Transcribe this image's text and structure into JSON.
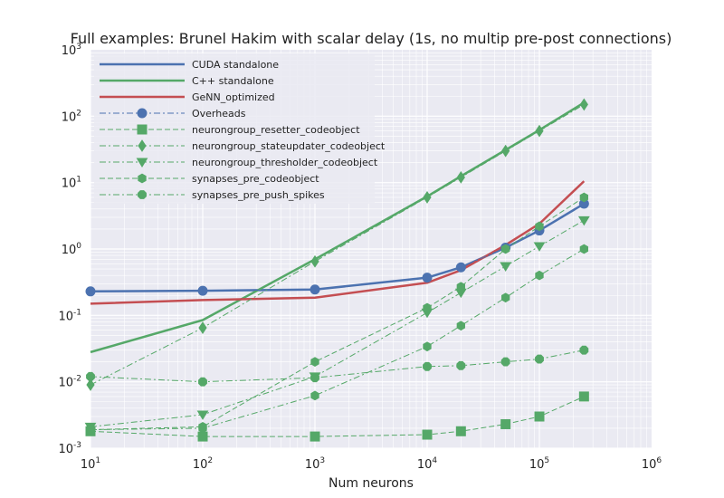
{
  "chart_data": {
    "type": "line",
    "title": "Full examples: Brunel Hakim with scalar delay (1s, no multip pre-post connections)",
    "xlabel": "Num neurons",
    "ylabel": "",
    "xscale": "log",
    "yscale": "log",
    "xlim": [
      10,
      1000000
    ],
    "ylim": [
      0.001,
      1000
    ],
    "grid": true,
    "legend_position": "top-left",
    "x_ticks": [
      {
        "base": "10",
        "exp": "1"
      },
      {
        "base": "10",
        "exp": "2"
      },
      {
        "base": "10",
        "exp": "3"
      },
      {
        "base": "10",
        "exp": "4"
      },
      {
        "base": "10",
        "exp": "5"
      },
      {
        "base": "10",
        "exp": "6"
      }
    ],
    "y_ticks": [
      {
        "base": "10",
        "exp": "-3"
      },
      {
        "base": "10",
        "exp": "-2"
      },
      {
        "base": "10",
        "exp": "-1"
      },
      {
        "base": "10",
        "exp": "0"
      },
      {
        "base": "10",
        "exp": "1"
      },
      {
        "base": "10",
        "exp": "2"
      },
      {
        "base": "10",
        "exp": "3"
      }
    ],
    "colors": {
      "blue": "#4c72b0",
      "green": "#55a868",
      "red": "#c44e52",
      "background": "#eaeaf2",
      "grid": "#ffffff"
    },
    "series": [
      {
        "name": "CUDA standalone",
        "color": "#4c72b0",
        "dash": "solid",
        "width": 2.5,
        "marker": "none",
        "x": [
          10,
          100,
          1000,
          10000,
          20000,
          50000,
          100000,
          250000
        ],
        "y": [
          0.23,
          0.235,
          0.245,
          0.37,
          0.53,
          1.05,
          1.9,
          4.8
        ]
      },
      {
        "name": "C++ standalone",
        "color": "#55a868",
        "dash": "solid",
        "width": 2.5,
        "marker": "none",
        "x": [
          10,
          100,
          1000,
          10000,
          20000,
          50000,
          100000,
          250000
        ],
        "y": [
          0.028,
          0.085,
          0.7,
          6.2,
          12.5,
          31,
          62,
          160
        ]
      },
      {
        "name": "GeNN_optimized",
        "color": "#c44e52",
        "dash": "solid",
        "width": 2.5,
        "marker": "none",
        "x": [
          10,
          100,
          1000,
          10000,
          20000,
          50000,
          100000,
          250000
        ],
        "y": [
          0.15,
          0.17,
          0.185,
          0.31,
          0.48,
          1.15,
          2.4,
          10.5
        ]
      },
      {
        "name": "Overheads",
        "color": "#4c72b0",
        "dash": "dashdot",
        "width": 1,
        "marker": "circle",
        "x": [
          10,
          100,
          1000,
          10000,
          20000,
          50000,
          100000,
          250000
        ],
        "y": [
          0.23,
          0.235,
          0.245,
          0.37,
          0.53,
          1.05,
          1.9,
          4.8
        ]
      },
      {
        "name": "neurongroup_resetter_codeobject",
        "color": "#55a868",
        "dash": "dashed",
        "width": 1,
        "marker": "square",
        "x": [
          10,
          100,
          1000,
          10000,
          20000,
          50000,
          100000,
          250000
        ],
        "y": [
          0.0018,
          0.0015,
          0.0015,
          0.0016,
          0.0018,
          0.0023,
          0.003,
          0.006
        ]
      },
      {
        "name": "neurongroup_stateupdater_codeobject",
        "color": "#55a868",
        "dash": "dashdot",
        "width": 1,
        "marker": "diamond",
        "x": [
          10,
          100,
          1000,
          10000,
          20000,
          50000,
          100000,
          250000
        ],
        "y": [
          0.009,
          0.065,
          0.65,
          6.0,
          12.0,
          30,
          60,
          150
        ]
      },
      {
        "name": "neurongroup_thresholder_codeobject",
        "color": "#55a868",
        "dash": "dashdot",
        "width": 1,
        "marker": "triangle",
        "x": [
          10,
          100,
          1000,
          10000,
          20000,
          50000,
          100000,
          250000
        ],
        "y": [
          0.0021,
          0.0032,
          0.012,
          0.11,
          0.22,
          0.55,
          1.1,
          2.7
        ]
      },
      {
        "name": "synapses_pre_codeobject",
        "color": "#55a868",
        "dash": "dashed",
        "width": 1,
        "marker": "hexagon",
        "x": [
          10,
          100,
          1000,
          10000,
          20000,
          50000,
          100000,
          250000
        ],
        "y": [
          0.0019,
          0.0021,
          0.02,
          0.13,
          0.27,
          1.0,
          2.2,
          6.0
        ]
      },
      {
        "name": "synapses_pre_push_spikes",
        "color": "#55a868",
        "dash": "dashdot",
        "width": 1,
        "marker": "octagon",
        "x": [
          10,
          100,
          1000,
          10000,
          20000,
          50000,
          100000,
          250000
        ],
        "y": [
          0.012,
          0.01,
          0.0115,
          0.017,
          0.0175,
          0.02,
          0.022,
          0.03
        ]
      },
      {
        "name": "",
        "color": "#55a868",
        "dash": "dashdot",
        "width": 1,
        "marker": "hexagon",
        "x": [
          10,
          100,
          1000,
          10000,
          20000,
          50000,
          100000,
          250000
        ],
        "y": [
          0.0019,
          0.002,
          0.0062,
          0.034,
          0.07,
          0.185,
          0.4,
          1.0
        ]
      }
    ]
  }
}
